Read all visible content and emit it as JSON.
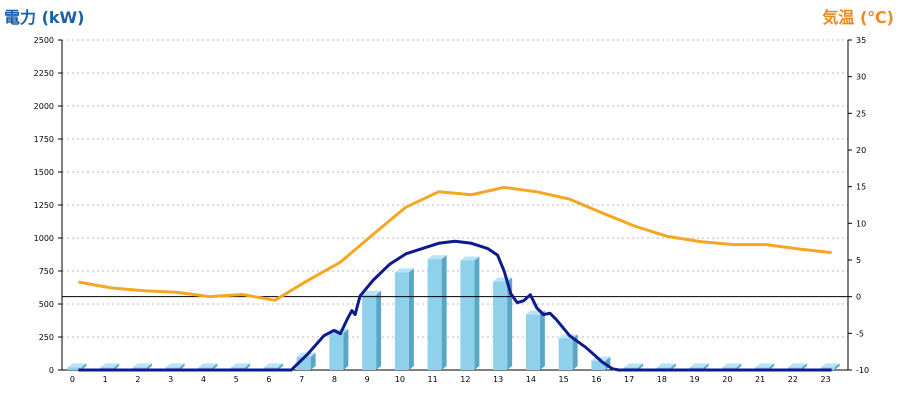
{
  "colors": {
    "power_title": "#1a5fa8",
    "temp_title": "#f08a1c",
    "bar_front": "#8fd0ea",
    "bar_side": "#5aa6c6",
    "bar_top": "#b8e4f4",
    "power_line": "#0f1b8c",
    "temp_line": "#f5a623",
    "grid": "#b8b8b8",
    "zero_line": "#000000"
  },
  "chart_data": {
    "type": "bar",
    "left_axis_title": "電力 (kW)",
    "right_axis_title": "気温 (℃)",
    "x": [
      "0",
      "1",
      "2",
      "3",
      "4",
      "5",
      "6",
      "7",
      "8",
      "9",
      "10",
      "11",
      "12",
      "13",
      "14",
      "15",
      "16",
      "17",
      "18",
      "19",
      "20",
      "21",
      "22",
      "23"
    ],
    "y_left": {
      "min": 0,
      "max": 2500,
      "ticks": [
        0,
        250,
        500,
        750,
        1000,
        1250,
        1500,
        1750,
        2000,
        2250,
        2500
      ]
    },
    "y_right": {
      "min": -10,
      "max": 35,
      "ticks": [
        -10,
        -5,
        0,
        5,
        10,
        15,
        20,
        25,
        30,
        35
      ]
    },
    "grid": true,
    "bars": {
      "axis": "left",
      "values": [
        20,
        20,
        20,
        20,
        20,
        20,
        20,
        100,
        280,
        570,
        740,
        840,
        830,
        670,
        420,
        240,
        70,
        20,
        20,
        20,
        20,
        20,
        20,
        20
      ]
    },
    "power_line": {
      "axis": "left",
      "points": [
        [
          0,
          0
        ],
        [
          1,
          0
        ],
        [
          2,
          0
        ],
        [
          3,
          0
        ],
        [
          4,
          0
        ],
        [
          5,
          0
        ],
        [
          6,
          0
        ],
        [
          6.5,
          0
        ],
        [
          7,
          120
        ],
        [
          7.5,
          260
        ],
        [
          7.8,
          300
        ],
        [
          8,
          275
        ],
        [
          8.2,
          380
        ],
        [
          8.35,
          450
        ],
        [
          8.45,
          420
        ],
        [
          8.6,
          560
        ],
        [
          9,
          680
        ],
        [
          9.5,
          800
        ],
        [
          10,
          880
        ],
        [
          10.5,
          920
        ],
        [
          11,
          960
        ],
        [
          11.5,
          975
        ],
        [
          12,
          960
        ],
        [
          12.5,
          920
        ],
        [
          12.8,
          870
        ],
        [
          13,
          750
        ],
        [
          13.2,
          580
        ],
        [
          13.4,
          510
        ],
        [
          13.6,
          525
        ],
        [
          13.8,
          570
        ],
        [
          14,
          470
        ],
        [
          14.2,
          420
        ],
        [
          14.4,
          430
        ],
        [
          14.6,
          380
        ],
        [
          15,
          260
        ],
        [
          15.5,
          170
        ],
        [
          16,
          60
        ],
        [
          16.3,
          10
        ],
        [
          16.5,
          0
        ],
        [
          17,
          0
        ],
        [
          18,
          0
        ],
        [
          19,
          0
        ],
        [
          20,
          0
        ],
        [
          21,
          0
        ],
        [
          22,
          0
        ],
        [
          23,
          0
        ]
      ]
    },
    "temperature_line": {
      "axis": "right",
      "values": [
        2,
        1.2,
        0.8,
        0.6,
        0,
        0.3,
        -0.5,
        2.2,
        4.7,
        8.5,
        12.2,
        14.3,
        13.9,
        14.9,
        14.3,
        13.3,
        11.4,
        9.6,
        8.2,
        7.5,
        7.1,
        7.1,
        6.5,
        6
      ]
    },
    "reference_line": {
      "axis": "right",
      "value": 0
    }
  }
}
